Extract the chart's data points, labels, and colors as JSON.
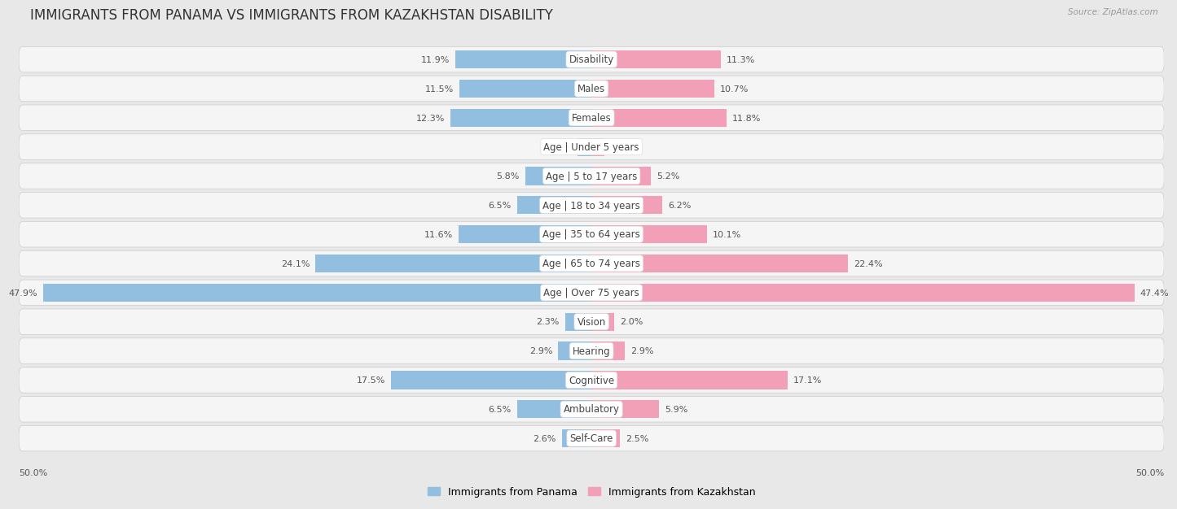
{
  "title": "IMMIGRANTS FROM PANAMA VS IMMIGRANTS FROM KAZAKHSTAN DISABILITY",
  "source": "Source: ZipAtlas.com",
  "categories": [
    "Disability",
    "Males",
    "Females",
    "Age | Under 5 years",
    "Age | 5 to 17 years",
    "Age | 18 to 34 years",
    "Age | 35 to 64 years",
    "Age | 65 to 74 years",
    "Age | Over 75 years",
    "Vision",
    "Hearing",
    "Cognitive",
    "Ambulatory",
    "Self-Care"
  ],
  "panama_values": [
    11.9,
    11.5,
    12.3,
    1.2,
    5.8,
    6.5,
    11.6,
    24.1,
    47.9,
    2.3,
    2.9,
    17.5,
    6.5,
    2.6
  ],
  "kazakhstan_values": [
    11.3,
    10.7,
    11.8,
    1.1,
    5.2,
    6.2,
    10.1,
    22.4,
    47.4,
    2.0,
    2.9,
    17.1,
    5.9,
    2.5
  ],
  "panama_color": "#92bfdf",
  "kazakhstan_color": "#f2a0b8",
  "max_value": 50.0,
  "background_color": "#e8e8e8",
  "row_bg_color": "#f5f5f5",
  "title_fontsize": 12,
  "label_fontsize": 8.5,
  "value_fontsize": 8,
  "legend_label_panama": "Immigrants from Panama",
  "legend_label_kazakhstan": "Immigrants from Kazakhstan"
}
